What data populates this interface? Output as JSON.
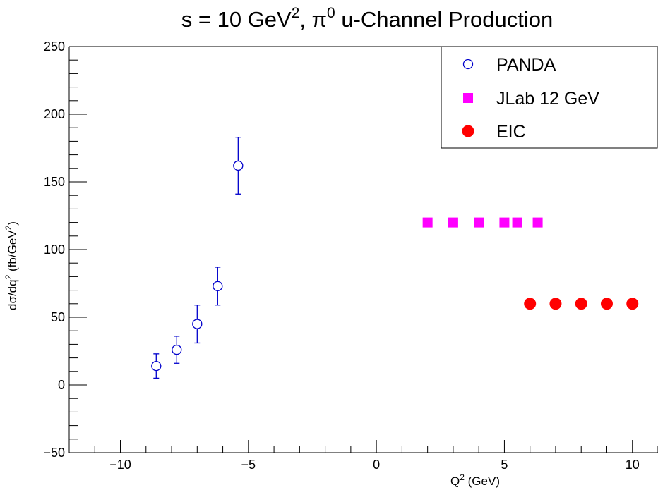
{
  "chart_data": {
    "type": "scatter",
    "title": {
      "main": "s = 10 GeV",
      "sup": "2",
      "mid": ", π",
      "sup2": "0",
      "tail": " u-Channel Production"
    },
    "xlabel": {
      "base": "Q",
      "sup": "2",
      "tail": " (GeV)"
    },
    "ylabel": {
      "pre": "dσ/dq",
      "sup": "2",
      "mid": " (fb/GeV",
      "sup2": "2",
      "tail": ")"
    },
    "xlim": [
      -12,
      11
    ],
    "ylim": [
      -50,
      250
    ],
    "x_ticks": [
      -10,
      -5,
      0,
      5,
      10
    ],
    "x_tick_labels": [
      "−10",
      "−5",
      "0",
      "5",
      "10"
    ],
    "y_ticks": [
      -50,
      0,
      50,
      100,
      150,
      200,
      250
    ],
    "y_tick_labels": [
      "−50",
      "0",
      "50",
      "100",
      "150",
      "200",
      "250"
    ],
    "grid": false,
    "legend_position": "top-right",
    "series": [
      {
        "name": "PANDA",
        "marker": "open-circle",
        "color": "#0000cc",
        "x": [
          -8.6,
          -7.8,
          -7.0,
          -6.2,
          -5.4
        ],
        "y": [
          14,
          26,
          45,
          73,
          162
        ],
        "yerr": [
          9,
          10,
          14,
          14,
          21
        ]
      },
      {
        "name": "JLab 12 GeV",
        "marker": "filled-square",
        "color": "#ff00ff",
        "x": [
          2,
          3,
          4,
          5,
          5.5,
          6.3
        ],
        "y": [
          120,
          120,
          120,
          120,
          120,
          120
        ]
      },
      {
        "name": "EIC",
        "marker": "filled-circle",
        "color": "#ff0000",
        "x": [
          6,
          7,
          8,
          9,
          10
        ],
        "y": [
          60,
          60,
          60,
          60,
          60
        ]
      }
    ]
  }
}
